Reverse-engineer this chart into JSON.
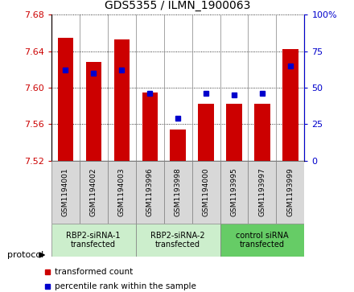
{
  "title": "GDS5355 / ILMN_1900063",
  "samples": [
    "GSM1194001",
    "GSM1194002",
    "GSM1194003",
    "GSM1193996",
    "GSM1193998",
    "GSM1194000",
    "GSM1193995",
    "GSM1193997",
    "GSM1193999"
  ],
  "red_values": [
    7.655,
    7.628,
    7.653,
    7.595,
    7.554,
    7.582,
    7.582,
    7.582,
    7.642
  ],
  "blue_values": [
    62,
    60,
    62,
    46,
    29,
    46,
    45,
    46,
    65
  ],
  "ylim": [
    7.52,
    7.68
  ],
  "yticks": [
    7.52,
    7.56,
    7.6,
    7.64,
    7.68
  ],
  "right_yticks": [
    0,
    25,
    50,
    75,
    100
  ],
  "right_ylabels": [
    "0",
    "25",
    "50",
    "75",
    "100%"
  ],
  "groups": [
    {
      "label": "RBP2-siRNA-1\ntransfected",
      "start": 0,
      "end": 3,
      "color": "#cceecc"
    },
    {
      "label": "RBP2-siRNA-2\ntransfected",
      "start": 3,
      "end": 6,
      "color": "#cceecc"
    },
    {
      "label": "control siRNA\ntransfected",
      "start": 6,
      "end": 9,
      "color": "#66cc66"
    }
  ],
  "sample_box_color": "#d8d8d8",
  "bar_color": "#cc0000",
  "dot_color": "#0000cc",
  "bar_width": 0.55,
  "background_color": "#ffffff",
  "plot_bg_color": "#ffffff",
  "legend_red": "transformed count",
  "legend_blue": "percentile rank within the sample",
  "protocol_label": "protocol"
}
